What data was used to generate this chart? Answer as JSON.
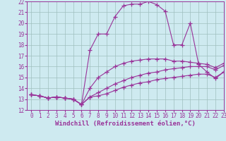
{
  "xlabel": "Windchill (Refroidissement éolien,°C)",
  "background_color": "#ceeaf0",
  "grid_color": "#9fbfbf",
  "line_color": "#993399",
  "x_values": [
    0,
    1,
    2,
    3,
    4,
    5,
    6,
    7,
    8,
    9,
    10,
    11,
    12,
    13,
    14,
    15,
    16,
    17,
    18,
    19,
    20,
    21,
    22,
    23
  ],
  "lines": [
    [
      13.4,
      13.3,
      13.1,
      13.2,
      13.1,
      13.0,
      12.5,
      13.2,
      13.3,
      13.5,
      13.8,
      14.1,
      14.3,
      14.5,
      14.6,
      14.8,
      14.9,
      15.0,
      15.1,
      15.2,
      15.3,
      15.3,
      15.0,
      15.5
    ],
    [
      13.4,
      13.3,
      13.1,
      13.2,
      13.1,
      13.0,
      12.5,
      13.2,
      13.6,
      14.0,
      14.4,
      14.7,
      15.0,
      15.2,
      15.4,
      15.5,
      15.7,
      15.8,
      15.9,
      16.0,
      16.0,
      16.0,
      15.7,
      16.1
    ],
    [
      13.4,
      13.3,
      13.1,
      13.2,
      13.1,
      13.0,
      12.5,
      14.0,
      15.0,
      15.5,
      16.0,
      16.3,
      16.5,
      16.6,
      16.7,
      16.7,
      16.7,
      16.5,
      16.5,
      16.4,
      16.3,
      16.2,
      15.9,
      16.3
    ],
    [
      13.4,
      13.3,
      13.1,
      13.2,
      13.1,
      13.0,
      12.5,
      17.5,
      19.0,
      19.0,
      20.6,
      21.6,
      21.75,
      21.75,
      22.0,
      21.7,
      21.1,
      18.0,
      18.0,
      20.0,
      16.2,
      15.5,
      14.9,
      15.5
    ]
  ],
  "ylim": [
    12,
    22
  ],
  "xlim": [
    -0.5,
    23
  ],
  "yticks": [
    12,
    13,
    14,
    15,
    16,
    17,
    18,
    19,
    20,
    21,
    22
  ],
  "xticks": [
    0,
    1,
    2,
    3,
    4,
    5,
    6,
    7,
    8,
    9,
    10,
    11,
    12,
    13,
    14,
    15,
    16,
    17,
    18,
    19,
    20,
    21,
    22,
    23
  ],
  "marker": "+",
  "markersize": 4,
  "linewidth": 0.8,
  "tick_fontsize": 5.5,
  "label_fontsize": 6.5
}
